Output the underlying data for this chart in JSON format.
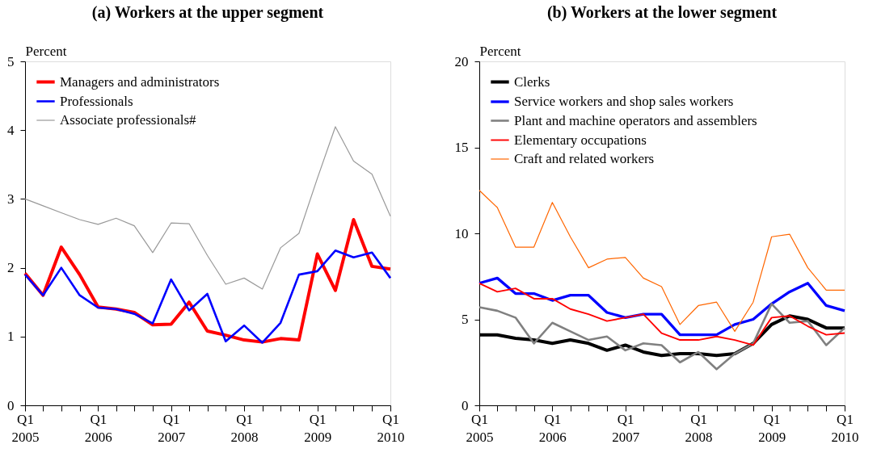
{
  "chart_data": [
    {
      "type": "line",
      "title": "(a) Workers at the upper segment",
      "ylabel": "Percent",
      "legend": "top left",
      "grid": false,
      "x": [
        "2005-01",
        "2005-04",
        "2005-07",
        "2005-10",
        "2006-01",
        "2006-04",
        "2006-07",
        "2006-10",
        "2007-01",
        "2007-04",
        "2007-07",
        "2007-10",
        "2008-01",
        "2008-04",
        "2008-07",
        "2008-10",
        "2009-01",
        "2009-04",
        "2009-07",
        "2009-10",
        "2010-01"
      ],
      "xlim": [
        "2005-01",
        "2010-01"
      ],
      "xticks": [
        {
          "value": "2005-01",
          "label": "Q1\n2005"
        },
        {
          "value": "2005-04",
          "label": null
        },
        {
          "value": "2005-07",
          "label": null
        },
        {
          "value": "2005-10",
          "label": null
        },
        {
          "value": "2006-01",
          "label": "Q1\n2006"
        },
        {
          "value": "2006-04",
          "label": null
        },
        {
          "value": "2006-07",
          "label": null
        },
        {
          "value": "2006-10",
          "label": null
        },
        {
          "value": "2007-01",
          "label": "Q1\n2007"
        },
        {
          "value": "2007-04",
          "label": null
        },
        {
          "value": "2007-07",
          "label": null
        },
        {
          "value": "2007-10",
          "label": null
        },
        {
          "value": "2008-01",
          "label": "Q1\n2008"
        },
        {
          "value": "2008-04",
          "label": null
        },
        {
          "value": "2008-07",
          "label": null
        },
        {
          "value": "2008-10",
          "label": null
        },
        {
          "value": "2009-01",
          "label": "Q1\n2009"
        },
        {
          "value": "2009-04",
          "label": null
        },
        {
          "value": "2009-07",
          "label": null
        },
        {
          "value": "2009-10",
          "label": null
        },
        {
          "value": "2010-01",
          "label": "Q1\n2010"
        }
      ],
      "ylim": [
        0,
        5
      ],
      "yticks": [
        0,
        1,
        2,
        3,
        4,
        5
      ],
      "series": [
        {
          "name": "Managers and administrators",
          "color": "#ff0000",
          "values": [
            1.92,
            1.6,
            2.3,
            1.9,
            1.43,
            1.4,
            1.35,
            1.17,
            1.18,
            1.5,
            1.08,
            1.02,
            0.95,
            0.92,
            0.97,
            0.95,
            2.2,
            1.67,
            2.7,
            2.02,
            1.98
          ]
        },
        {
          "name": "Professionals",
          "color": "#0000ff",
          "values": [
            1.9,
            1.6,
            2.0,
            1.6,
            1.42,
            1.4,
            1.33,
            1.19,
            1.83,
            1.38,
            1.62,
            0.93,
            1.16,
            0.91,
            1.2,
            1.9,
            1.95,
            2.25,
            2.15,
            2.22,
            1.85
          ]
        },
        {
          "name": "Associate professionals#",
          "color": "#999999",
          "values": [
            3.0,
            2.9,
            2.8,
            2.7,
            2.63,
            2.72,
            2.61,
            2.22,
            2.65,
            2.64,
            2.18,
            1.76,
            1.85,
            1.69,
            2.29,
            2.5,
            3.3,
            4.05,
            3.55,
            3.36,
            2.75
          ]
        }
      ]
    },
    {
      "type": "line",
      "title": "(b) Workers at the lower segment",
      "ylabel": "Percent",
      "legend": "top left",
      "grid": false,
      "x": [
        "2005-01",
        "2005-04",
        "2005-07",
        "2005-10",
        "2006-01",
        "2006-04",
        "2006-07",
        "2006-10",
        "2007-01",
        "2007-04",
        "2007-07",
        "2007-10",
        "2008-01",
        "2008-04",
        "2008-07",
        "2008-10",
        "2009-01",
        "2009-04",
        "2009-07",
        "2009-10",
        "2010-01"
      ],
      "xlim": [
        "2005-01",
        "2010-01"
      ],
      "xticks": [
        {
          "value": "2005-01",
          "label": "Q1\n2005"
        },
        {
          "value": "2005-04",
          "label": null
        },
        {
          "value": "2005-07",
          "label": null
        },
        {
          "value": "2005-10",
          "label": null
        },
        {
          "value": "2006-01",
          "label": "Q1\n2006"
        },
        {
          "value": "2006-04",
          "label": null
        },
        {
          "value": "2006-07",
          "label": null
        },
        {
          "value": "2006-10",
          "label": null
        },
        {
          "value": "2007-01",
          "label": "Q1\n2007"
        },
        {
          "value": "2007-04",
          "label": null
        },
        {
          "value": "2007-07",
          "label": null
        },
        {
          "value": "2007-10",
          "label": null
        },
        {
          "value": "2008-01",
          "label": "Q1\n2008"
        },
        {
          "value": "2008-04",
          "label": null
        },
        {
          "value": "2008-07",
          "label": null
        },
        {
          "value": "2008-10",
          "label": null
        },
        {
          "value": "2009-01",
          "label": "Q1\n2009"
        },
        {
          "value": "2009-04",
          "label": null
        },
        {
          "value": "2009-07",
          "label": null
        },
        {
          "value": "2009-10",
          "label": null
        },
        {
          "value": "2010-01",
          "label": "Q1\n2010"
        }
      ],
      "ylim": [
        0,
        20
      ],
      "yticks": [
        0,
        5,
        10,
        15,
        20
      ],
      "series": [
        {
          "name": "Clerks",
          "color": "#000000",
          "values": [
            4.1,
            4.1,
            3.9,
            3.8,
            3.6,
            3.8,
            3.6,
            3.2,
            3.5,
            3.1,
            2.9,
            3.0,
            3.0,
            2.9,
            3.0,
            3.6,
            4.7,
            5.2,
            5.0,
            4.5,
            4.5
          ]
        },
        {
          "name": "Service workers and shop sales workers",
          "color": "#0000ff",
          "values": [
            7.1,
            7.4,
            6.5,
            6.5,
            6.1,
            6.4,
            6.4,
            5.4,
            5.1,
            5.3,
            5.3,
            4.1,
            4.1,
            4.1,
            4.7,
            5.0,
            5.9,
            6.6,
            7.1,
            5.8,
            5.5
          ]
        },
        {
          "name": "Plant and machine operators and assemblers",
          "color": "#808080",
          "values": [
            5.7,
            5.5,
            5.1,
            3.6,
            4.8,
            4.3,
            3.8,
            4.0,
            3.2,
            3.6,
            3.5,
            2.5,
            3.1,
            2.1,
            3.0,
            3.6,
            5.9,
            4.8,
            4.9,
            3.5,
            4.5
          ]
        },
        {
          "name": "Elementary occupations",
          "color": "#ff0000",
          "values": [
            7.1,
            6.6,
            6.8,
            6.2,
            6.2,
            5.6,
            5.3,
            4.9,
            5.1,
            5.3,
            4.2,
            3.8,
            3.8,
            4.0,
            3.8,
            3.5,
            5.1,
            5.2,
            4.6,
            4.1,
            4.2
          ]
        },
        {
          "name": "Craft and related workers",
          "color": "#ff6600",
          "values": [
            12.5,
            11.5,
            9.2,
            9.2,
            11.8,
            9.8,
            8.0,
            8.5,
            8.6,
            7.4,
            6.9,
            4.7,
            5.8,
            6.0,
            4.3,
            6.0,
            9.8,
            9.95,
            8.0,
            6.7,
            6.7
          ]
        }
      ]
    }
  ]
}
